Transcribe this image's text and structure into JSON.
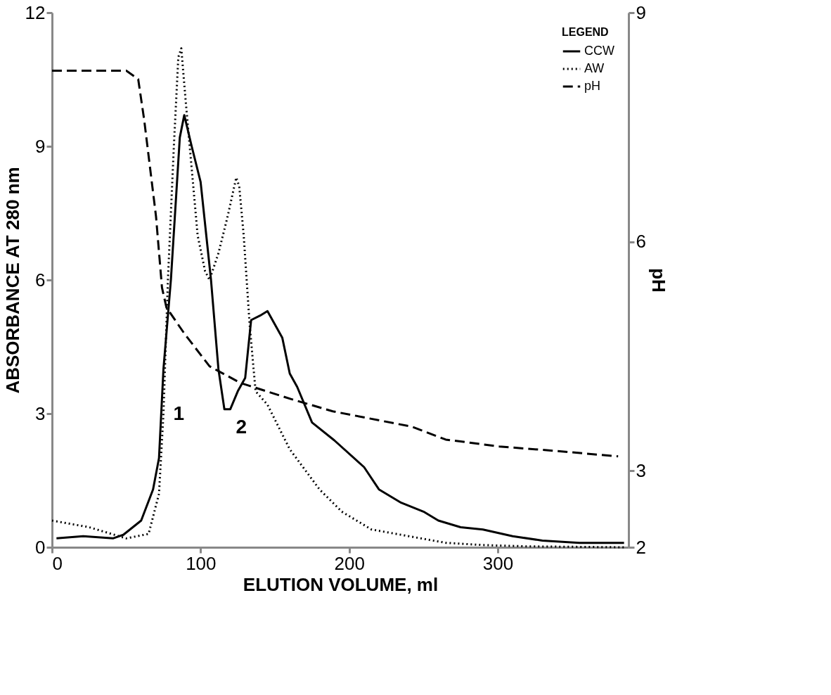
{
  "chart_data": {
    "type": "line",
    "xlabel": "ELUTION VOLUME, ml",
    "ylabel": "ABSORBANCE AT 280 nm",
    "y2label": "pH",
    "legend_title": "LEGEND",
    "legend": "top right",
    "grid": false,
    "marker": "none",
    "xlim": [
      0,
      388
    ],
    "xticks": [
      0,
      100,
      200,
      300
    ],
    "ylim": [
      0,
      12
    ],
    "yticks": [
      0,
      3,
      6,
      9,
      12
    ],
    "y2lim": [
      2,
      9
    ],
    "y2ticks": [
      2,
      3,
      6,
      9
    ],
    "series": [
      {
        "name": "CCW",
        "color": "#000000",
        "line_style": "solid",
        "x": [
          3,
          21,
          41,
          48,
          60,
          68,
          72,
          75,
          80,
          86,
          89,
          94,
          100,
          107,
          112,
          116,
          120,
          125,
          130,
          134,
          140,
          145,
          150,
          155,
          160,
          165,
          175,
          190,
          210,
          220,
          235,
          250,
          260,
          275,
          290,
          310,
          330,
          355,
          385
        ],
        "values": [
          0.2,
          0.25,
          0.2,
          0.28,
          0.6,
          1.3,
          2.0,
          4.0,
          6.0,
          9.2,
          9.7,
          9.0,
          8.2,
          6.0,
          4.0,
          3.1,
          3.1,
          3.5,
          3.8,
          5.1,
          5.2,
          5.3,
          5.0,
          4.7,
          3.9,
          3.6,
          2.8,
          2.4,
          1.8,
          1.3,
          1.0,
          0.8,
          0.6,
          0.45,
          0.4,
          0.25,
          0.15,
          0.1,
          0.1
        ]
      },
      {
        "name": "AW",
        "color": "#000000",
        "line_style": "dotted",
        "x": [
          0,
          25,
          50,
          65,
          72,
          75,
          78,
          82,
          85,
          87,
          90,
          94,
          98,
          103,
          106,
          112,
          118,
          124,
          126,
          129,
          133,
          137,
          145,
          160,
          180,
          195,
          215,
          240,
          265,
          290,
          320,
          385
        ],
        "values": [
          0.6,
          0.45,
          0.2,
          0.3,
          1.2,
          3.0,
          6.0,
          9.0,
          11.0,
          11.2,
          10.0,
          8.5,
          7.0,
          6.2,
          6.0,
          6.6,
          7.4,
          8.3,
          8.1,
          7.0,
          5.0,
          3.5,
          3.2,
          2.2,
          1.3,
          0.8,
          0.4,
          0.25,
          0.1,
          0.05,
          0.02,
          0
        ]
      },
      {
        "name": "pH",
        "color": "#000000",
        "line_style": "dashed",
        "axis": "y2",
        "x": [
          0,
          50,
          58,
          62,
          70,
          74,
          77,
          89,
          106,
          127,
          161,
          189,
          242,
          265,
          301,
          340,
          381
        ],
        "values": [
          8.24,
          8.24,
          8.13,
          7.6,
          6.33,
          5.4,
          5.14,
          4.8,
          4.37,
          4.15,
          3.94,
          3.78,
          3.58,
          3.41,
          3.32,
          3.26,
          3.19
        ]
      }
    ],
    "annotations": [
      {
        "text": "1",
        "x": 76,
        "y": 3.4
      },
      {
        "text": "2",
        "x": 118,
        "y": 3.1
      }
    ]
  }
}
